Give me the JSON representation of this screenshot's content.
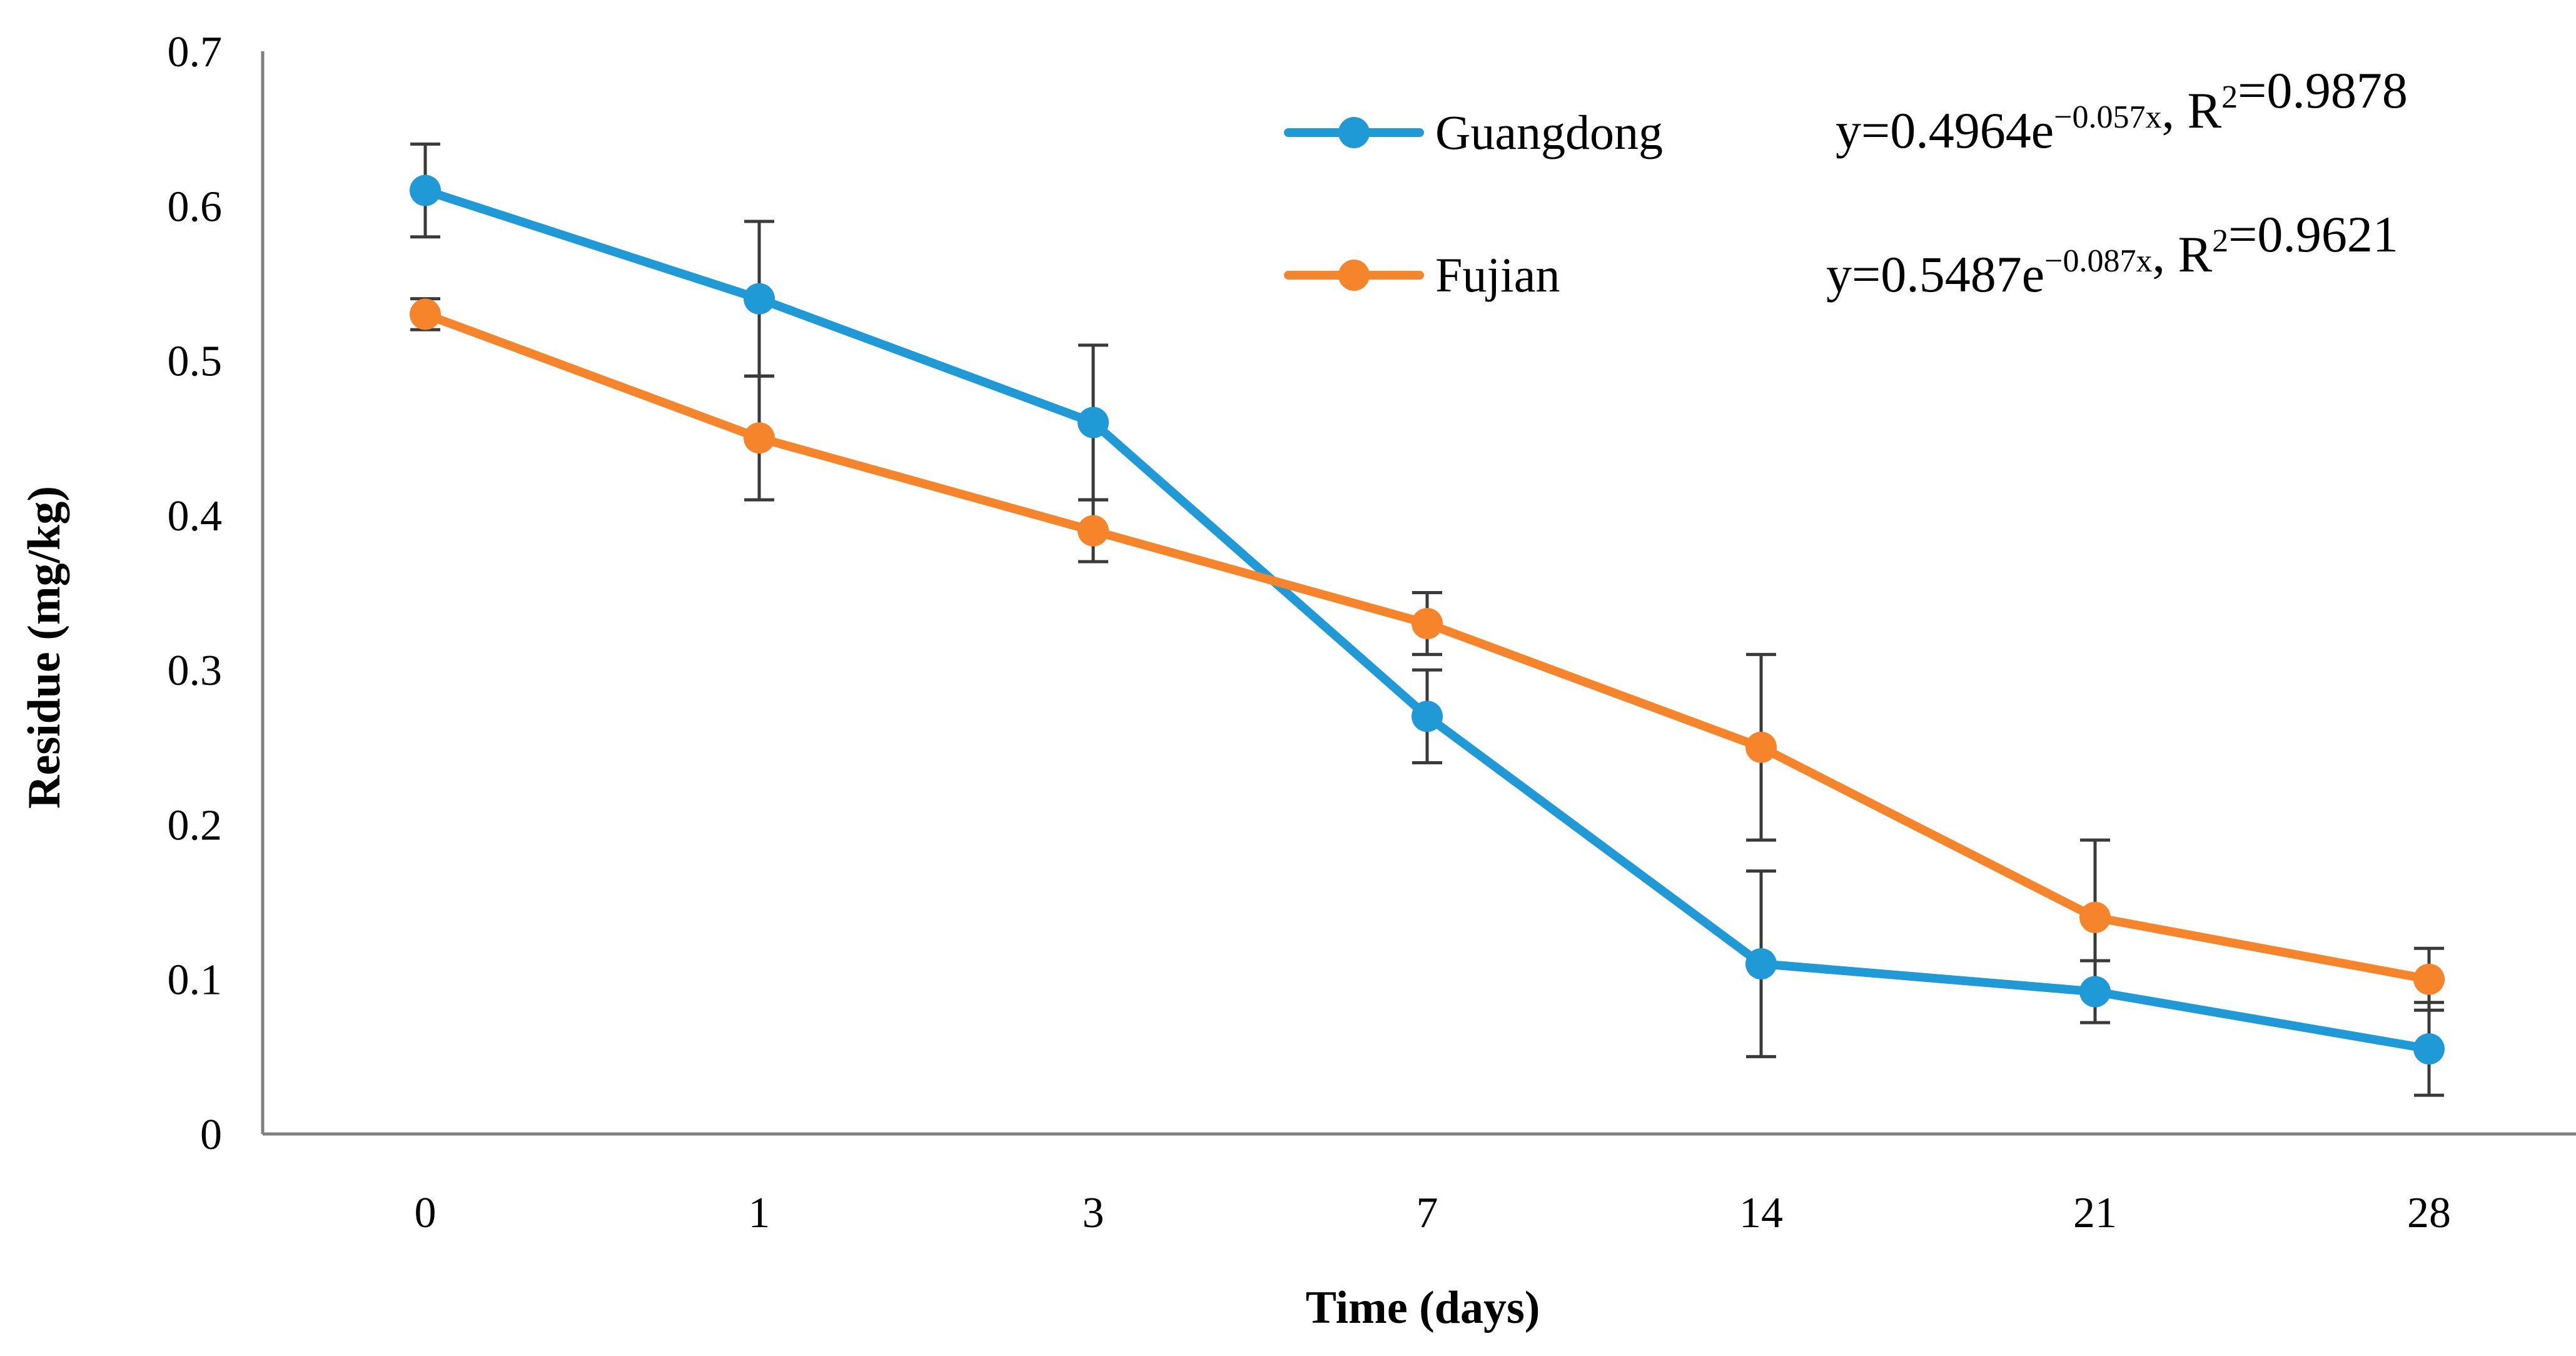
{
  "chart_data": {
    "type": "line",
    "title": "",
    "xlabel": "Time (days)",
    "ylabel": "Residue (mg/kg)",
    "categories": [
      "0",
      "1",
      "3",
      "7",
      "14",
      "21",
      "28"
    ],
    "ylim": [
      0,
      0.7
    ],
    "yticks": [
      "0",
      "0.1",
      "0.2",
      "0.3",
      "0.4",
      "0.5",
      "0.6",
      "0.7"
    ],
    "grid": false,
    "legend_position": "top-right",
    "series": [
      {
        "name": "Guangdong",
        "color": "#1f9ad6",
        "values": [
          0.61,
          0.54,
          0.46,
          0.27,
          0.11,
          0.092,
          0.055
        ],
        "error": [
          0.03,
          0.05,
          0.05,
          0.03,
          0.06,
          0.02,
          0.03
        ],
        "equation": {
          "prefix": "y=0.4964e",
          "exponent": "−0.057x",
          "mid": ", R",
          "r2_sup": "2",
          "suffix": "=0.9878"
        }
      },
      {
        "name": "Fujian",
        "color": "#f6842b",
        "values": [
          0.53,
          0.45,
          0.39,
          0.33,
          0.25,
          0.14,
          0.1
        ],
        "error": [
          0.01,
          0.04,
          0.02,
          0.02,
          0.06,
          0.05,
          0.02
        ],
        "equation": {
          "prefix": "y=0.5487e",
          "exponent": "−0.087x",
          "mid": ", R",
          "r2_sup": "2",
          "suffix": "=0.9621"
        }
      }
    ]
  }
}
